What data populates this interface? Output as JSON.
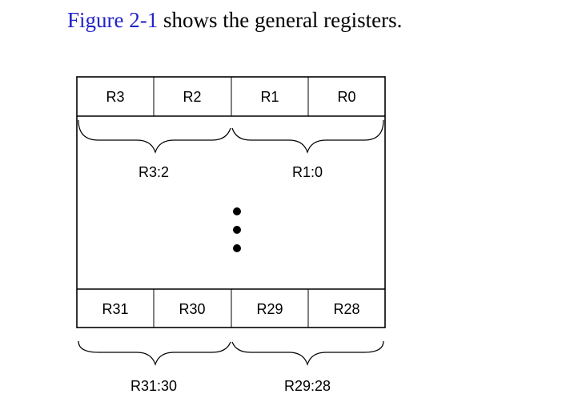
{
  "caption": {
    "link_text": "Figure 2-1",
    "rest_text": " shows the general registers."
  },
  "figure": {
    "top_row": {
      "registers": [
        "R3",
        "R2",
        "R1",
        "R0"
      ],
      "pairs": [
        "R3:2",
        "R1:0"
      ]
    },
    "bottom_row": {
      "registers": [
        "R31",
        "R30",
        "R29",
        "R28"
      ],
      "pairs": [
        "R31:30",
        "R29:28"
      ]
    },
    "ellipsis_dots": 3
  }
}
